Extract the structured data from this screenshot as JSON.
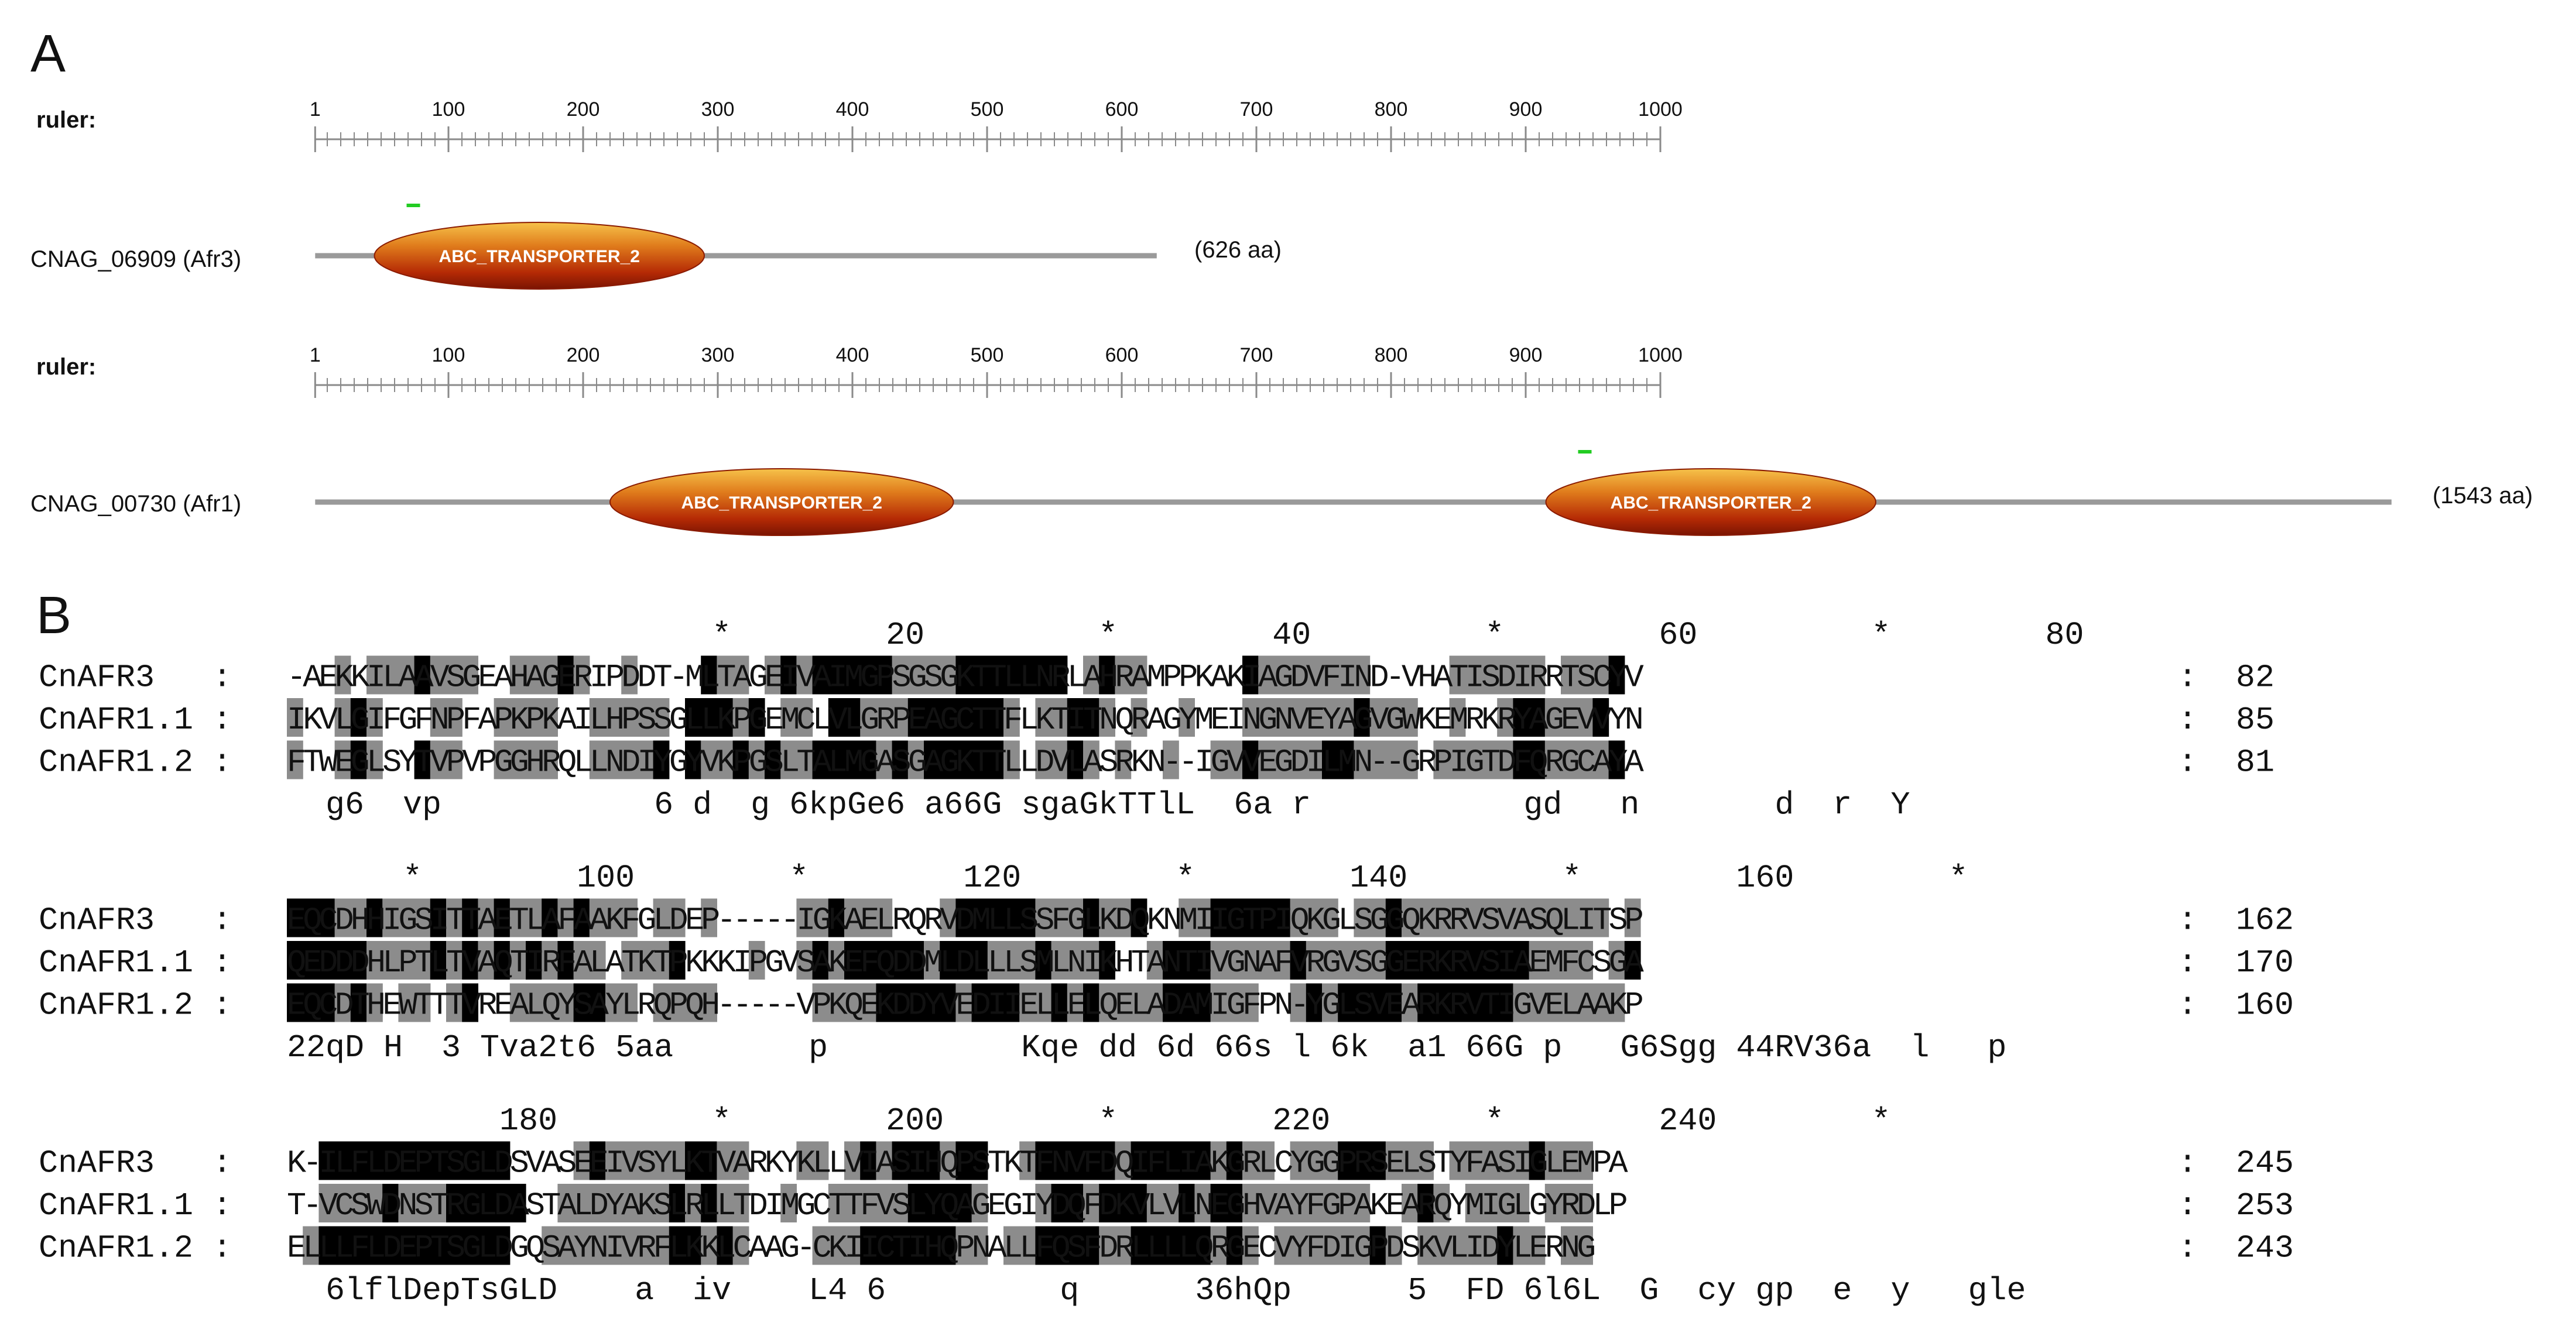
{
  "panel_a": {
    "label": "A",
    "tracks": [
      {
        "ruler_label": "ruler:",
        "ticks": [
          1,
          100,
          200,
          300,
          400,
          500,
          600,
          700,
          800,
          900,
          1000
        ],
        "protein_label": "CNAG_06909 (Afr3)",
        "length_label": "(626 aa)",
        "length": 626,
        "domains": [
          {
            "name": "ABC_TRANSPORTER_2",
            "start": 45,
            "end": 290,
            "marked": true
          }
        ]
      },
      {
        "ruler_label": "ruler:",
        "ticks": [
          1,
          100,
          200,
          300,
          400,
          500,
          600,
          700,
          800,
          900,
          1000
        ],
        "protein_label": "CNAG_00730 (Afr1)",
        "length_label": "(1543 aa)",
        "length": 1543,
        "domains": [
          {
            "name": "ABC_TRANSPORTER_2",
            "start": 220,
            "end": 475,
            "marked": false
          },
          {
            "name": "ABC_TRANSPORTER_2",
            "start": 915,
            "end": 1160,
            "marked": true
          }
        ]
      }
    ]
  },
  "panel_b": {
    "label": "B",
    "blocks": [
      {
        "header": "                      *        20         *        40         *        60         *        80",
        "rows": [
          {
            "name": "CnAFR3  ",
            "seq": "-AEKKILAAVSGEAHAGERIPDDT-MLTAGEIVAIMGPSGSGKTTLLNRLAHRAMPPKAKIAGDVFIND-VHATISDIRRTSCYV",
            "end": "82"
          },
          {
            "name": "CnAFR1.1",
            "seq": "IKVLGIFGFNPFAPKPKAILHPSSGLLKPGEMCLVLGRPEAGCTTFLKTITNQRAGYMEINGNVEYAGVGWKEMRKRYAGEVVYN",
            "end": "85"
          },
          {
            "name": "CnAFR1.2",
            "seq": "FTWEGLSYTVPVPGGHRQLLNDIYGYVKPGSLTALMGASGAGKTTLLDVLASRKN--IGVVEGDILMN--GRPIGTDFQRGCAYA",
            "end": "81"
          }
        ],
        "consensus": "  g6  vp           6 d  g 6kpGe6 a66G sgaGkTTlL  6a r           gd   n       d  r  Y",
        "shade": [
          "   g gggbggg  gggbg  g    bgg gbgbbbbbggggbbbbbbb gbgg      bggggggg     gggggg gggb ",
          "g  gbg   gg  gggg  ggggg bbbgb gg bbgggbbbbbbg ggbbg g  g   gggggggbggg  g  gbbgggb ",
          "g  gbg  bgg  gggg  ggggb bggbgbggbbbbgbgbbbbbg ggbg g  g  ggbggggbbgggg gggggbbggggb"
        ]
      },
      {
        "header": "      *        100        *        120        *        140        *        160        *",
        "rows": [
          {
            "name": "CnAFR3  ",
            "seq": "EQCDHHIGSITTAETLAFAAKFGLDEP-----IGKAELRQRVDMLLSSFGLKDQKNMIIGTPIQKGLSGGQKRRVSVASQLITSP",
            "end": "162"
          },
          {
            "name": "CnAFR1.1",
            "seq": "QEDDDHLPTLTVAQTIRFALATKTPKKKIPGVSAKEFQDDMLDLLLSMLNIKHTANTIVGNAFVRGVSGGERKRVSIAEMFCSGA",
            "end": "170"
          },
          {
            "name": "CnAFR1.2",
            "seq": "EQCDTHEWTTTVREALQYSAYLRQPQH-----VPKQEKDDYVEDIIELLELQELADAMIGFPN-YGLSVEARKRVTIGVELAAKP",
            "end": "160"
          }
        ],
        "consensus": "22qD H  3 Tva2t6 5aa       p          Kqe dd 6d 66s l 6k  a1 66G p   G6Sgg 44RV36a  l   p",
        "shade": [
          "bbbggbgggbgbgbggbgbggg gg g     ggbggg   gbbbbbgggbggb  ggbbbbbggg ggbggggggggggggg gg",
          "bbbbbggggbgbgbgbgbgg gggb    g  gbgbbbbbgbbbgggbgggb  gbbbgggggbgggggbbbbbbbbbgggg gbb",
          "bbbgbg gg gb  ggggbbgg gggg      ggggbbbbbgbbbggbgbggggbbbggg  gbgbbbbgbbbbbbggggggg g"
        ]
      },
      {
        "header": "           180        *        200        *        220        *        240        *",
        "rows": [
          {
            "name": "CnAFR3  ",
            "seq": "K-ILFLDEPTSGLDSVASEEIVSYLKTVARKYKLLVIASIHQPSTKTFNVFDQIFLIAKGRLCYGGPRSELSTYFASIGLEMPA",
            "end": "245"
          },
          {
            "name": "CnAFR1.1",
            "seq": "T-VCSWDNSTRGLDASTALDYAKSLRLLTDIMGCTTFVSLYQAGEGIYDQFDKVLVLNEGHVAYFGPAKEARQYMIGLGYRDLP",
            "end": "253"
          },
          {
            "name": "CnAFR1.2",
            "seq": "ELLLFLDEPTSGLDGQSAYNIVRFLKKLCAAG-CKIICTIHQPNALLFQSFDRLLLLQRGECVYFDIGPDSKVLIDYLERNG",
            "end": "243"
          }
        ],
        "consensus": "  6lflDepTsGLD    a  iv    L4 6         q      36hQp      5  FD 6l6L  G  cy gp  e  y   gle",
        "shade": [
          "  bbbbbbbbbbbb    gbgggggbbgg   gg gbgbbbgbb  gbbbbbgbbbbbgbgg gggbbbggg gggggbggg   ",
          "  ggggbgggbbbbb  gggggggbgbgg  g  gggggbbbbg   gbbgbbbggbgbbgggggggg  gbg gggg ggg   ",
          " gbbbbbbbbbbbb  ggggggggbbgbg    gggbbbbbbgg ggbbbbggbbbbbgbg ggggggbg gggggbgg ggg  "
        ]
      }
    ]
  }
}
